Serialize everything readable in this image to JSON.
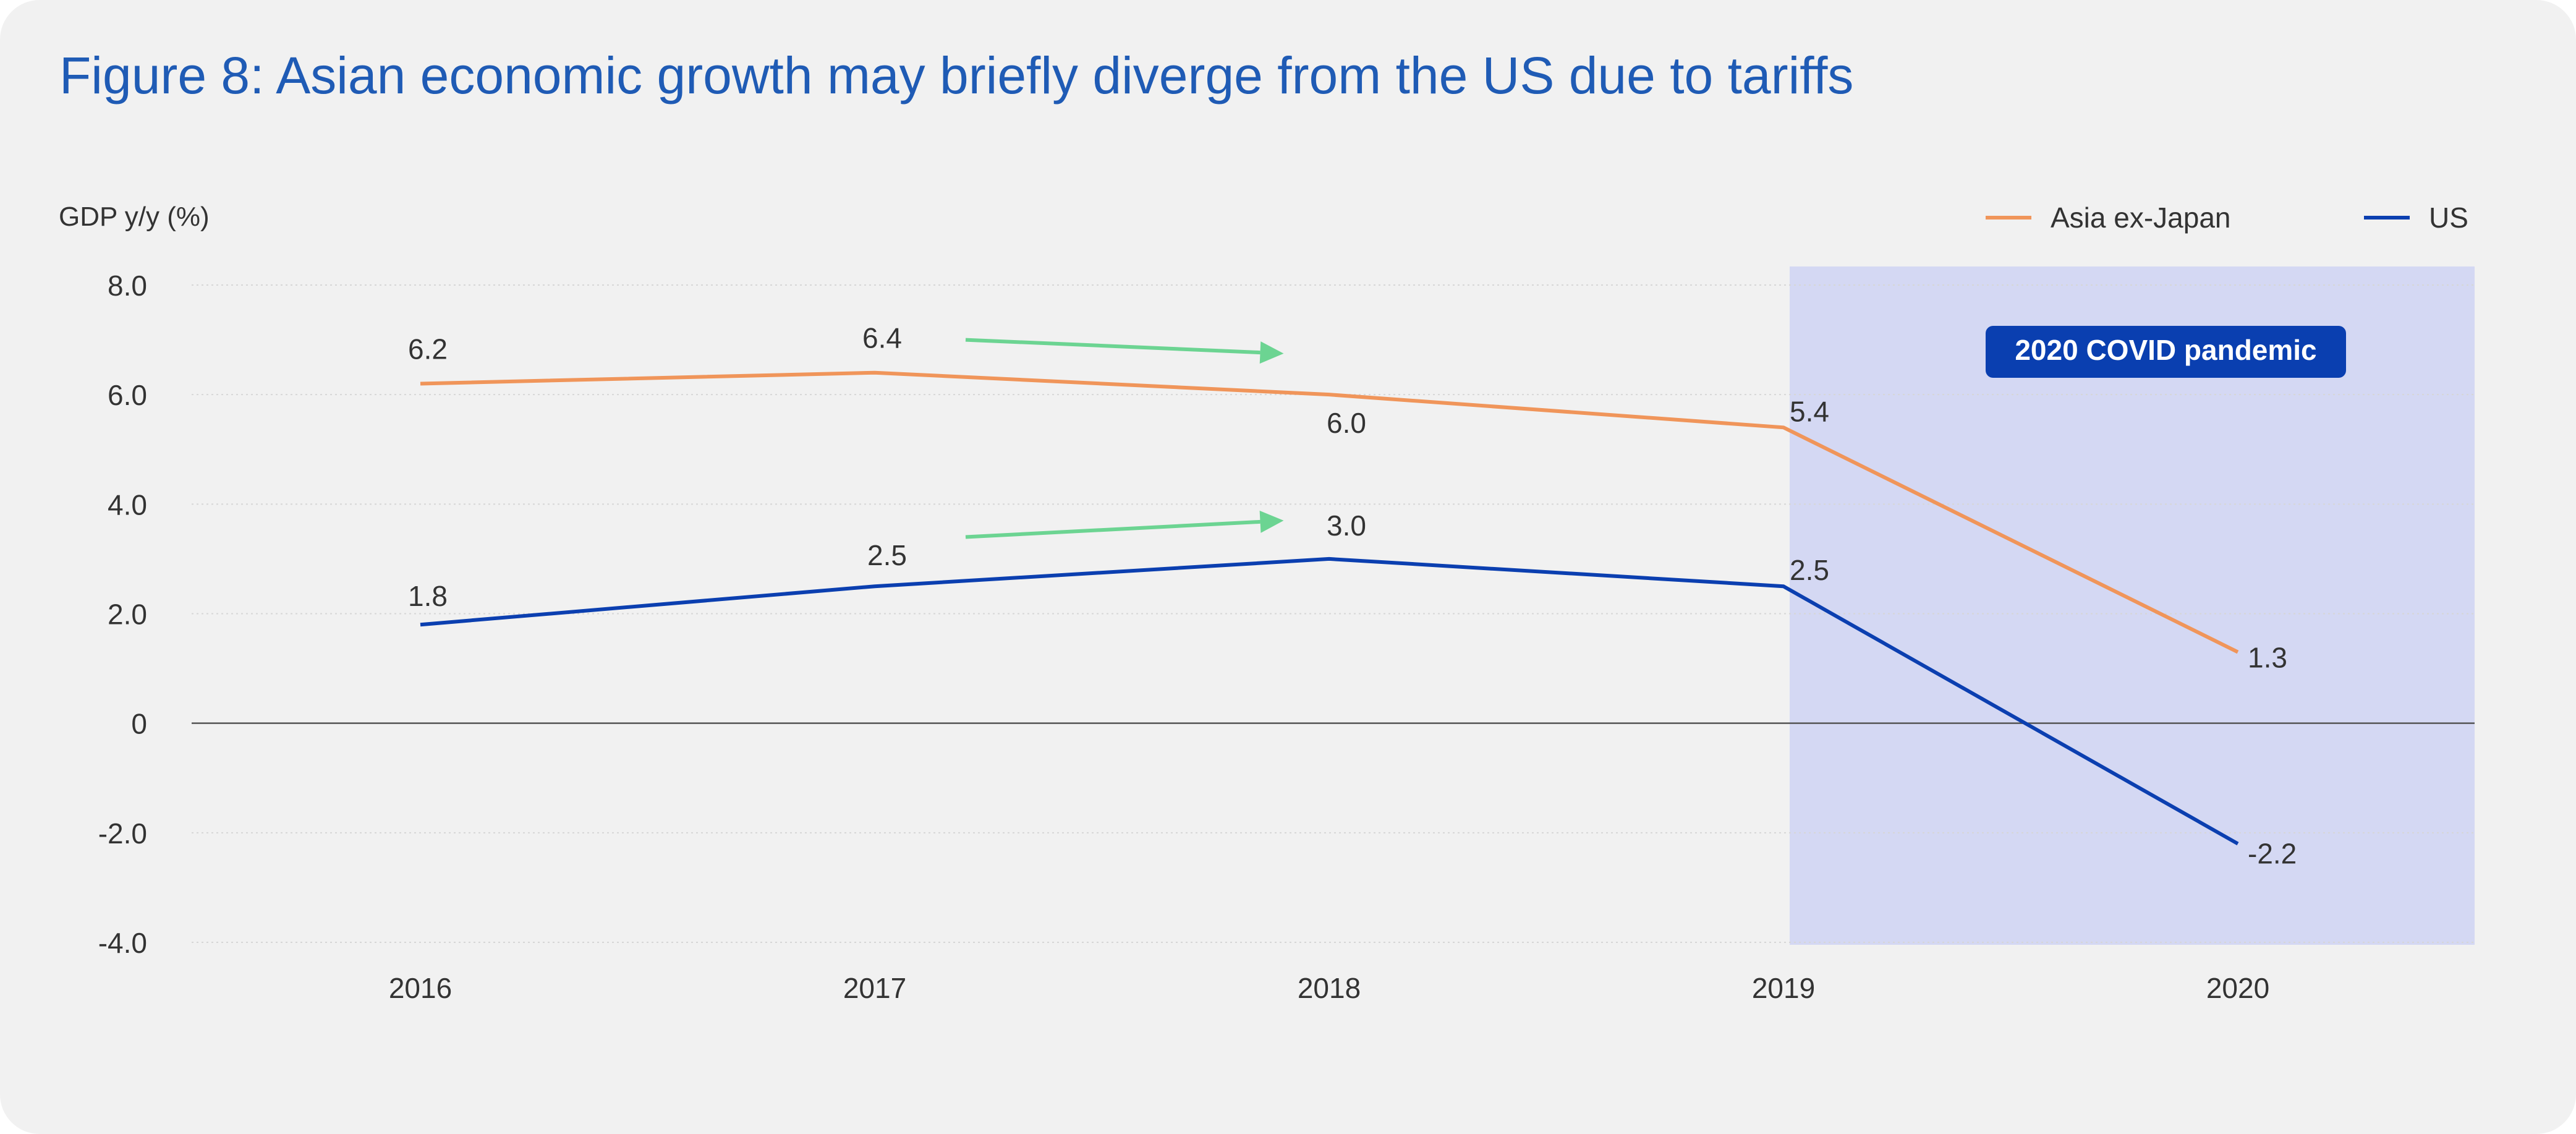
{
  "title": "Figure 8: Asian economic growth may briefly diverge from the US due to tariffs",
  "chart_data": {
    "type": "line",
    "ylabel": "GDP y/y (%)",
    "xlabel": "",
    "categories": [
      "2016",
      "2017",
      "2018",
      "2019",
      "2020"
    ],
    "ylim": [
      -4.0,
      8.0
    ],
    "yticks": [
      8.0,
      6.0,
      4.0,
      2.0,
      0,
      -2.0,
      -4.0
    ],
    "ytick_labels": [
      "8.0",
      "6.0",
      "4.0",
      "2.0",
      "0",
      "-2.0",
      "-4.0"
    ],
    "grid": true,
    "legend_position": "top-right",
    "series": [
      {
        "name": "Asia ex-Japan",
        "color": "#f0955a",
        "values": [
          6.2,
          6.4,
          6.0,
          5.4,
          1.3
        ],
        "labels": [
          "6.2",
          "6.4",
          "6.0",
          "5.4",
          "1.3"
        ]
      },
      {
        "name": "US",
        "color": "#0b3fb0",
        "values": [
          1.8,
          2.5,
          3.0,
          2.5,
          -2.2
        ],
        "labels": [
          "1.8",
          "2.5",
          "3.0",
          "2.5",
          "-2.2"
        ]
      }
    ],
    "shaded_region": {
      "from": "2019",
      "to": "2020",
      "color": "#d4d8f3",
      "label": "2020 COVID pandemic",
      "label_bg": "#0a3fb0"
    },
    "annotations": [
      {
        "type": "arrow",
        "color": "#6cd492",
        "from": [
          2017.2,
          7.0
        ],
        "to": [
          2017.9,
          6.75
        ]
      },
      {
        "type": "arrow",
        "color": "#6cd492",
        "from": [
          2017.2,
          3.4
        ],
        "to": [
          2017.9,
          3.7
        ]
      }
    ],
    "colors": {
      "title": "#1f5bb5",
      "text": "#333333",
      "grid": "#d6d6d6",
      "zero_line": "#555555"
    }
  }
}
